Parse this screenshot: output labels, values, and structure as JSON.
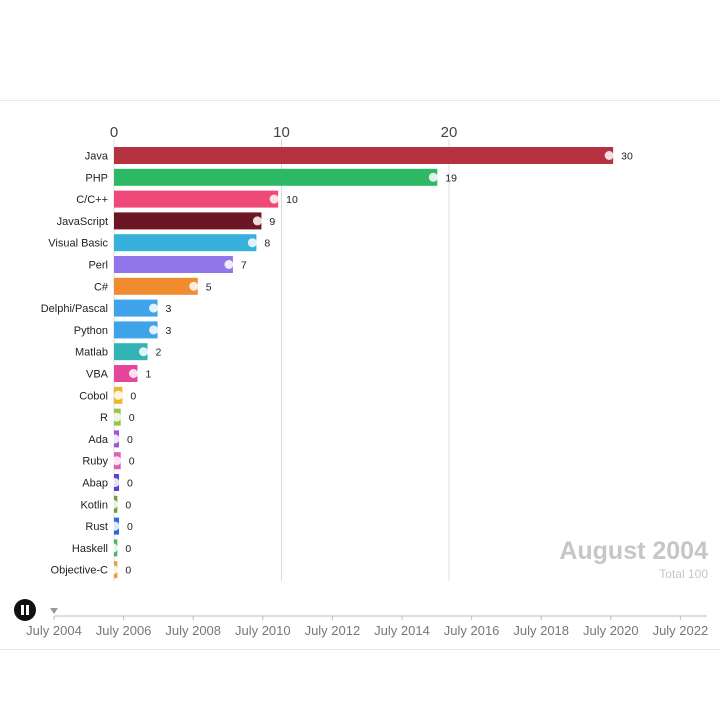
{
  "chart_data": {
    "type": "bar",
    "orientation": "horizontal",
    "title": "",
    "xlabel": "",
    "ylabel": "",
    "xlim": [
      0,
      30
    ],
    "x_ticks": [
      0,
      10,
      20
    ],
    "grid": true,
    "categories": [
      "Java",
      "PHP",
      "C/C++",
      "JavaScript",
      "Visual Basic",
      "Perl",
      "C#",
      "Delphi/Pascal",
      "Python",
      "Matlab",
      "VBA",
      "Cobol",
      "R",
      "Ada",
      "Ruby",
      "Abap",
      "Kotlin",
      "Rust",
      "Haskell",
      "Objective-C"
    ],
    "values": [
      30,
      19,
      10,
      9,
      8,
      7,
      5,
      3,
      3,
      2,
      1,
      0,
      0,
      0,
      0,
      0,
      0,
      0,
      0,
      0
    ],
    "plot_values": [
      29.8,
      19.3,
      9.8,
      8.8,
      8.5,
      7.1,
      5.0,
      2.6,
      2.6,
      2.0,
      1.4,
      0.5,
      0.4,
      0.3,
      0.4,
      0.3,
      0.2,
      0.3,
      0.2,
      0.2
    ],
    "colors": [
      "#b73241",
      "#2db866",
      "#ef4a77",
      "#6c1524",
      "#36b1dc",
      "#8f77e9",
      "#f08c2e",
      "#3fa3ea",
      "#3fa3ea",
      "#33b3b3",
      "#e5459c",
      "#e8b92a",
      "#98c44a",
      "#9c56d6",
      "#de5fb8",
      "#5b42d6",
      "#6e9c3d",
      "#2e6bd6",
      "#4fb55f",
      "#e3a33c"
    ]
  },
  "overlay": {
    "date": "August 2004",
    "total": "Total 100"
  },
  "timeline": {
    "labels": [
      "July 2004",
      "July 2006",
      "July 2008",
      "July 2010",
      "July 2012",
      "July 2014",
      "July 2016",
      "July 2018",
      "July 2020",
      "July 2022"
    ],
    "progress": 0.0
  },
  "controls": {
    "play_state": "paused",
    "icon": "pause-icon"
  }
}
